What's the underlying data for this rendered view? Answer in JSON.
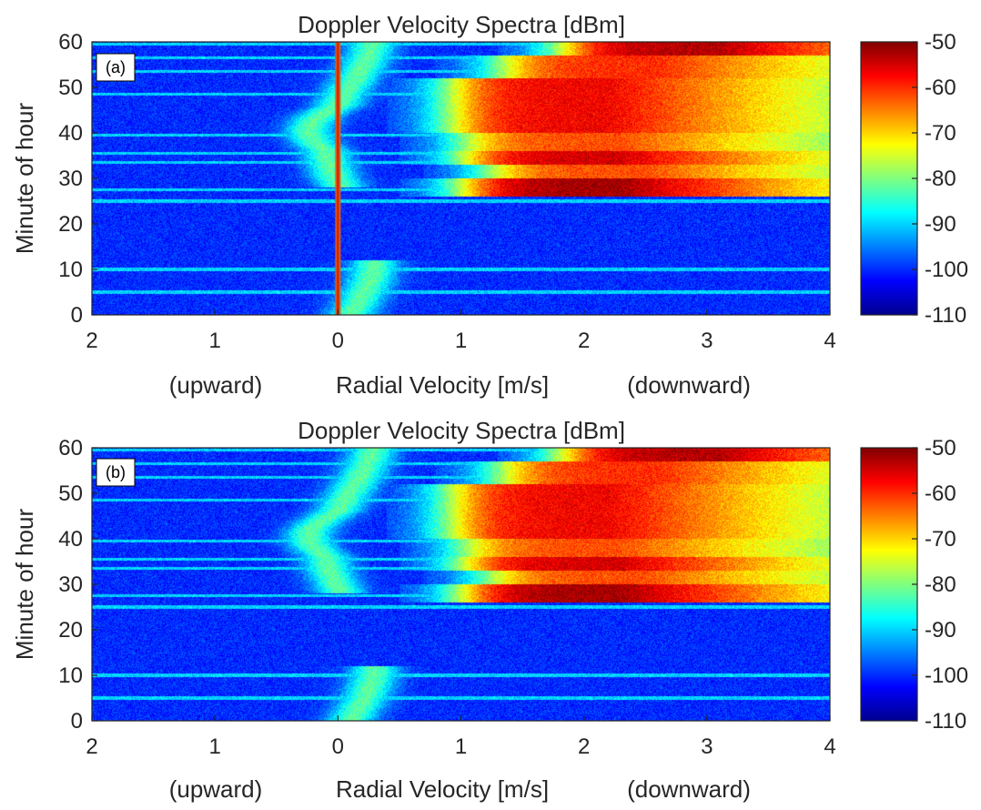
{
  "chart_data": [
    {
      "panel": "(a)",
      "type": "heatmap",
      "title": "Doppler Velocity Spectra [dBm]",
      "xlabel": "Radial Velocity [m/s]",
      "xlabel_left": "(upward)",
      "xlabel_right": "(downward)",
      "ylabel": "Minute of hour",
      "x_tick_labels": [
        "2",
        "1",
        "0",
        "1",
        "2",
        "3",
        "4"
      ],
      "x_tick_values": [
        -2,
        -1,
        0,
        1,
        2,
        3,
        4
      ],
      "y_ticks": [
        0,
        10,
        20,
        30,
        40,
        50,
        60
      ],
      "xlim": [
        -2,
        4
      ],
      "ylim": [
        0,
        60
      ],
      "colorbar": {
        "label_ticks": [
          -50,
          -60,
          -70,
          -80,
          -90,
          -100,
          -110
        ],
        "range": [
          -110,
          -50
        ],
        "colormap": "jet"
      },
      "noise_floor_dbm": -100,
      "zero_velocity_line": true,
      "bands": [
        {
          "y": [
            26,
            30
          ],
          "peak_dbm": -52,
          "onset_v": 1.0
        },
        {
          "y": [
            30,
            33
          ],
          "peak_dbm": -62,
          "onset_v": 1.2
        },
        {
          "y": [
            33,
            36
          ],
          "peak_dbm": -55,
          "onset_v": 1.0
        },
        {
          "y": [
            36,
            40
          ],
          "peak_dbm": -62,
          "onset_v": 1.0
        },
        {
          "y": [
            40,
            52
          ],
          "peak_dbm": -57,
          "onset_v": 0.9
        },
        {
          "y": [
            52,
            57
          ],
          "peak_dbm": -60,
          "onset_v": 1.3
        },
        {
          "y": [
            57,
            60
          ],
          "peak_dbm": -53,
          "onset_v": 1.8
        }
      ]
    },
    {
      "panel": "(b)",
      "type": "heatmap",
      "title": "Doppler Velocity Spectra [dBm]",
      "xlabel": "Radial Velocity [m/s]",
      "xlabel_left": "(upward)",
      "xlabel_right": "(downward)",
      "ylabel": "Minute of hour",
      "x_tick_labels": [
        "2",
        "1",
        "0",
        "1",
        "2",
        "3",
        "4"
      ],
      "x_tick_values": [
        -2,
        -1,
        0,
        1,
        2,
        3,
        4
      ],
      "y_ticks": [
        0,
        10,
        20,
        30,
        40,
        50,
        60
      ],
      "xlim": [
        -2,
        4
      ],
      "ylim": [
        0,
        60
      ],
      "colorbar": {
        "label_ticks": [
          -50,
          -60,
          -70,
          -80,
          -90,
          -100,
          -110
        ],
        "range": [
          -110,
          -50
        ],
        "colormap": "jet"
      },
      "noise_floor_dbm": -100,
      "zero_velocity_line": false,
      "bands": [
        {
          "y": [
            26,
            30
          ],
          "peak_dbm": -52,
          "onset_v": 1.0
        },
        {
          "y": [
            30,
            33
          ],
          "peak_dbm": -62,
          "onset_v": 1.2
        },
        {
          "y": [
            33,
            36
          ],
          "peak_dbm": -55,
          "onset_v": 1.0
        },
        {
          "y": [
            36,
            40
          ],
          "peak_dbm": -62,
          "onset_v": 1.0
        },
        {
          "y": [
            40,
            52
          ],
          "peak_dbm": -57,
          "onset_v": 0.9
        },
        {
          "y": [
            52,
            57
          ],
          "peak_dbm": -60,
          "onset_v": 1.3
        },
        {
          "y": [
            57,
            60
          ],
          "peak_dbm": -53,
          "onset_v": 1.8
        }
      ]
    }
  ]
}
